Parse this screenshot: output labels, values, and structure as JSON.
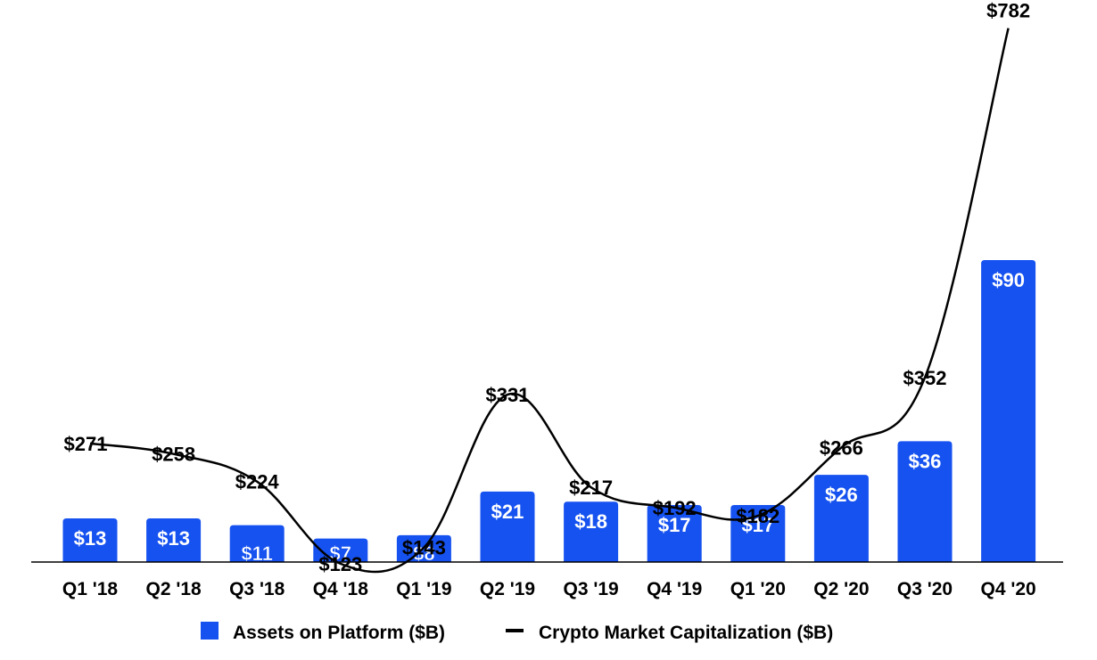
{
  "chart_data": {
    "type": "bar+line",
    "categories": [
      "Q1 '18",
      "Q2 '18",
      "Q3 '18",
      "Q4 '18",
      "Q1 '19",
      "Q2 '19",
      "Q3 '19",
      "Q4 '19",
      "Q1 '20",
      "Q2 '20",
      "Q3 '20",
      "Q4 '20"
    ],
    "series": [
      {
        "name": "Assets on Platform ($B)",
        "type": "bar",
        "color": "#1652f0",
        "values": [
          13,
          13,
          11,
          7,
          8,
          21,
          18,
          17,
          17,
          26,
          36,
          90
        ],
        "labels": [
          "$13",
          "$13",
          "$11",
          "$7",
          "$8",
          "$21",
          "$18",
          "$17",
          "$17",
          "$26",
          "$36",
          "$90"
        ]
      },
      {
        "name": "Crypto Market Capitalization ($B)",
        "type": "line",
        "color": "#000000",
        "values": [
          271,
          258,
          224,
          123,
          143,
          331,
          217,
          192,
          182,
          266,
          352,
          782
        ],
        "labels": [
          "$271",
          "$258",
          "$224",
          "$123",
          "$143",
          "$331",
          "$217",
          "$192",
          "$182",
          "$266",
          "$352",
          "$782"
        ]
      }
    ],
    "title": "",
    "xlabel": "",
    "ylabel": "",
    "grid": false,
    "legend_position": "bottom-center"
  }
}
